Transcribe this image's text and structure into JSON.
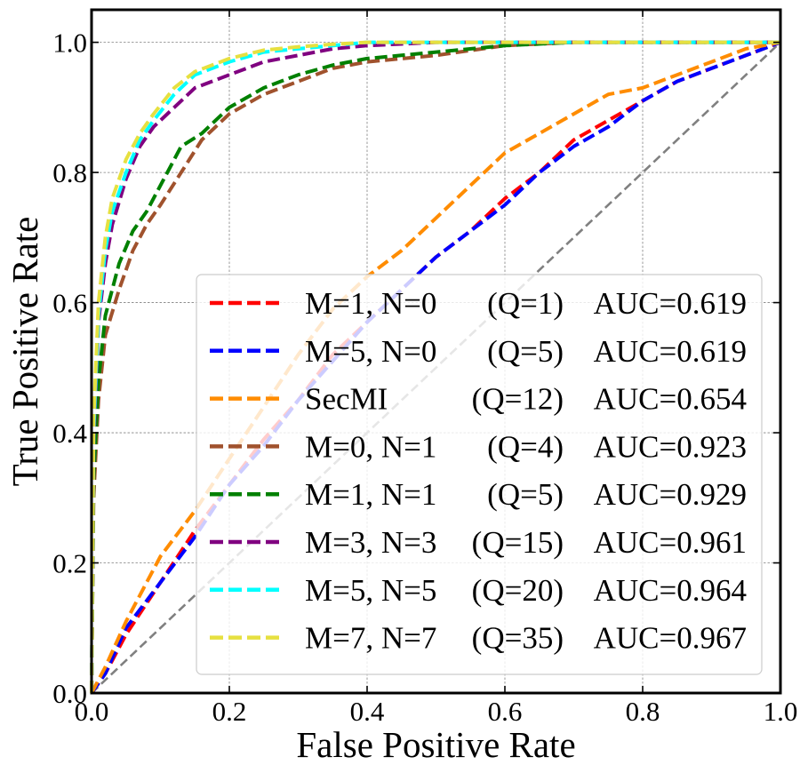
{
  "chart_data": {
    "type": "line",
    "title": "",
    "xlabel": "False Positive Rate",
    "ylabel": "True Positive Rate",
    "xlim": [
      0.0,
      1.0
    ],
    "ylim": [
      0.0,
      1.05
    ],
    "grid": true,
    "legend_position": "lower-right",
    "x_ticks": [
      {
        "value": 0.0,
        "label": "0.0"
      },
      {
        "value": 0.2,
        "label": "0.2"
      },
      {
        "value": 0.4,
        "label": "0.4"
      },
      {
        "value": 0.6,
        "label": "0.6"
      },
      {
        "value": 0.8,
        "label": "0.8"
      },
      {
        "value": 1.0,
        "label": "1.0"
      }
    ],
    "y_ticks": [
      {
        "value": 0.0,
        "label": "0.0"
      },
      {
        "value": 0.2,
        "label": "0.2"
      },
      {
        "value": 0.4,
        "label": "0.4"
      },
      {
        "value": 0.6,
        "label": "0.6"
      },
      {
        "value": 0.8,
        "label": "0.8"
      },
      {
        "value": 1.0,
        "label": "1.0"
      }
    ],
    "reference_line": {
      "name": "chance",
      "color": "#808080",
      "x": [
        0,
        1
      ],
      "y": [
        0,
        1
      ]
    },
    "series": [
      {
        "name": "M=1, N=0 (Q=1)",
        "legend_config": "M=1, N=0",
        "legend_query": "(Q=1)",
        "legend_auc": "AUC=0.619",
        "auc": 0.619,
        "color": "#ff0000",
        "x": [
          0,
          0.02,
          0.05,
          0.1,
          0.15,
          0.2,
          0.25,
          0.3,
          0.35,
          0.4,
          0.45,
          0.5,
          0.55,
          0.6,
          0.65,
          0.7,
          0.75,
          0.8,
          0.85,
          0.9,
          0.95,
          1.0
        ],
        "y": [
          0,
          0.03,
          0.09,
          0.17,
          0.25,
          0.32,
          0.39,
          0.45,
          0.52,
          0.57,
          0.62,
          0.67,
          0.71,
          0.76,
          0.8,
          0.85,
          0.88,
          0.91,
          0.94,
          0.96,
          0.98,
          1.0
        ]
      },
      {
        "name": "M=5, N=0 (Q=5)",
        "legend_config": "M=5, N=0",
        "legend_query": "(Q=5)",
        "legend_auc": "AUC=0.619",
        "auc": 0.619,
        "color": "#0000ff",
        "x": [
          0,
          0.02,
          0.05,
          0.1,
          0.15,
          0.2,
          0.25,
          0.3,
          0.35,
          0.4,
          0.45,
          0.5,
          0.55,
          0.6,
          0.65,
          0.7,
          0.75,
          0.8,
          0.85,
          0.9,
          0.95,
          1.0
        ],
        "y": [
          0,
          0.03,
          0.1,
          0.17,
          0.24,
          0.32,
          0.38,
          0.45,
          0.51,
          0.57,
          0.62,
          0.67,
          0.71,
          0.75,
          0.8,
          0.84,
          0.87,
          0.91,
          0.94,
          0.96,
          0.98,
          1.0
        ]
      },
      {
        "name": "SecMI (Q=12)",
        "legend_config": "SecMI",
        "legend_query": "(Q=12)",
        "legend_auc": "AUC=0.654",
        "auc": 0.654,
        "color": "#ff8c00",
        "x": [
          0,
          0.02,
          0.05,
          0.1,
          0.15,
          0.2,
          0.25,
          0.3,
          0.35,
          0.4,
          0.45,
          0.5,
          0.55,
          0.6,
          0.65,
          0.7,
          0.75,
          0.8,
          0.85,
          0.9,
          0.95,
          1.0
        ],
        "y": [
          0,
          0.04,
          0.11,
          0.21,
          0.28,
          0.36,
          0.44,
          0.52,
          0.59,
          0.64,
          0.68,
          0.73,
          0.78,
          0.83,
          0.86,
          0.89,
          0.92,
          0.93,
          0.95,
          0.97,
          0.99,
          1.0
        ]
      },
      {
        "name": "M=0, N=1 (Q=4)",
        "legend_config": "M=0, N=1",
        "legend_query": "(Q=4)",
        "legend_auc": "AUC=0.923",
        "auc": 0.923,
        "color": "#a0522d",
        "x": [
          0,
          0.003,
          0.01,
          0.02,
          0.04,
          0.06,
          0.08,
          0.1,
          0.13,
          0.16,
          0.2,
          0.25,
          0.3,
          0.35,
          0.4,
          0.5,
          0.6,
          0.7,
          0.8,
          0.9,
          1.0
        ],
        "y": [
          0,
          0.3,
          0.45,
          0.55,
          0.62,
          0.68,
          0.72,
          0.75,
          0.8,
          0.85,
          0.89,
          0.92,
          0.94,
          0.96,
          0.97,
          0.98,
          0.995,
          1.0,
          1.0,
          1.0,
          1.0
        ]
      },
      {
        "name": "M=1, N=1 (Q=5)",
        "legend_config": "M=1, N=1",
        "legend_query": "(Q=5)",
        "legend_auc": "AUC=0.929",
        "auc": 0.929,
        "color": "#008000",
        "x": [
          0,
          0.003,
          0.01,
          0.02,
          0.04,
          0.06,
          0.08,
          0.1,
          0.13,
          0.16,
          0.2,
          0.25,
          0.3,
          0.35,
          0.4,
          0.5,
          0.6,
          0.7,
          0.8,
          0.9,
          1.0
        ],
        "y": [
          0,
          0.33,
          0.48,
          0.58,
          0.66,
          0.71,
          0.74,
          0.78,
          0.84,
          0.86,
          0.9,
          0.93,
          0.95,
          0.965,
          0.975,
          0.985,
          0.995,
          1.0,
          1.0,
          1.0,
          1.0
        ]
      },
      {
        "name": "M=3, N=3 (Q=15)",
        "legend_config": "M=3, N=3",
        "legend_query": "(Q=15)",
        "legend_auc": "AUC=0.961",
        "auc": 0.961,
        "color": "#800080",
        "x": [
          0,
          0.003,
          0.01,
          0.02,
          0.03,
          0.05,
          0.07,
          0.09,
          0.12,
          0.15,
          0.2,
          0.25,
          0.3,
          0.35,
          0.4,
          0.5,
          0.6,
          0.7,
          0.8,
          0.9,
          1.0
        ],
        "y": [
          0,
          0.38,
          0.57,
          0.66,
          0.72,
          0.79,
          0.84,
          0.87,
          0.9,
          0.93,
          0.95,
          0.97,
          0.98,
          0.99,
          0.995,
          1.0,
          1.0,
          1.0,
          1.0,
          1.0,
          1.0
        ]
      },
      {
        "name": "M=5, N=5 (Q=20)",
        "legend_config": "M=5, N=5",
        "legend_query": "(Q=20)",
        "legend_auc": "AUC=0.964",
        "auc": 0.964,
        "color": "#00ffff",
        "x": [
          0,
          0.003,
          0.01,
          0.02,
          0.03,
          0.05,
          0.07,
          0.09,
          0.12,
          0.15,
          0.2,
          0.25,
          0.3,
          0.35,
          0.4,
          0.5,
          0.6,
          0.7,
          0.8,
          0.9,
          1.0
        ],
        "y": [
          0,
          0.4,
          0.58,
          0.68,
          0.74,
          0.8,
          0.85,
          0.88,
          0.92,
          0.95,
          0.97,
          0.985,
          0.99,
          0.995,
          1.0,
          1.0,
          1.0,
          1.0,
          1.0,
          1.0,
          1.0
        ]
      },
      {
        "name": "M=7, N=7 (Q=35)",
        "legend_config": "M=7, N=7",
        "legend_query": "(Q=35)",
        "legend_auc": "AUC=0.967",
        "auc": 0.967,
        "color": "#e6e040",
        "x": [
          0,
          0.003,
          0.01,
          0.02,
          0.03,
          0.05,
          0.07,
          0.09,
          0.12,
          0.15,
          0.2,
          0.25,
          0.3,
          0.35,
          0.4,
          0.5,
          0.6,
          0.7,
          0.8,
          0.9,
          1.0
        ],
        "y": [
          0,
          0.42,
          0.6,
          0.7,
          0.76,
          0.82,
          0.86,
          0.89,
          0.93,
          0.955,
          0.975,
          0.988,
          0.993,
          0.997,
          1.0,
          1.0,
          1.0,
          1.0,
          1.0,
          1.0,
          1.0
        ]
      }
    ]
  }
}
